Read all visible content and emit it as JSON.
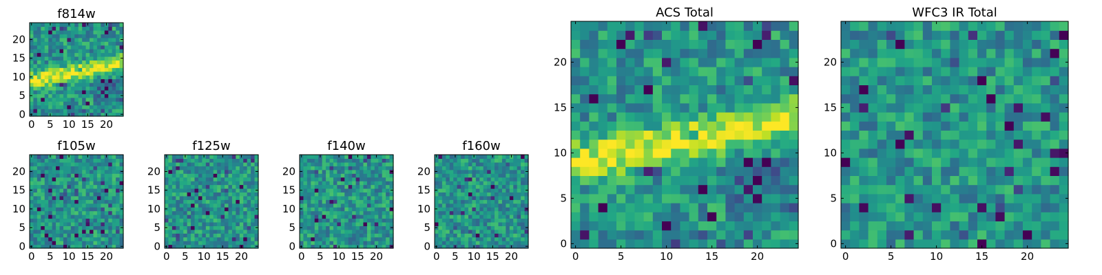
{
  "chart_data": [
    {
      "type": "heatmap",
      "title": "f814w",
      "xlim": [
        -0.5,
        24.5
      ],
      "ylim": [
        -0.5,
        24.5
      ],
      "x_ticks": [
        0,
        5,
        10,
        15,
        20
      ],
      "y_ticks": [
        0,
        5,
        10,
        15,
        20
      ],
      "grid": false,
      "colormap": "viridis",
      "colorbar": false,
      "feature": "bright diagonal band rising from y≈9 at left to y≈14 at right",
      "seed": 11
    },
    {
      "type": "heatmap",
      "title": "f105w",
      "xlim": [
        -0.5,
        24.5
      ],
      "ylim": [
        -0.5,
        24.5
      ],
      "x_ticks": [
        0,
        5,
        10,
        15,
        20
      ],
      "y_ticks": [
        0,
        5,
        10,
        15,
        20
      ],
      "grid": false,
      "colormap": "viridis",
      "colorbar": false,
      "feature": "noise",
      "seed": 23
    },
    {
      "type": "heatmap",
      "title": "f125w",
      "xlim": [
        -0.5,
        24.5
      ],
      "ylim": [
        -0.5,
        24.5
      ],
      "x_ticks": [
        0,
        5,
        10,
        15,
        20
      ],
      "y_ticks": [
        0,
        5,
        10,
        15,
        20
      ],
      "grid": false,
      "colormap": "viridis",
      "colorbar": false,
      "feature": "noise",
      "seed": 37
    },
    {
      "type": "heatmap",
      "title": "f140w",
      "xlim": [
        -0.5,
        24.5
      ],
      "ylim": [
        -0.5,
        24.5
      ],
      "x_ticks": [
        0,
        5,
        10,
        15,
        20
      ],
      "y_ticks": [
        0,
        5,
        10,
        15,
        20
      ],
      "grid": false,
      "colormap": "viridis",
      "colorbar": false,
      "feature": "noise",
      "seed": 41
    },
    {
      "type": "heatmap",
      "title": "f160w",
      "xlim": [
        -0.5,
        24.5
      ],
      "ylim": [
        -0.5,
        24.5
      ],
      "x_ticks": [
        0,
        5,
        10,
        15,
        20
      ],
      "y_ticks": [
        0,
        5,
        10,
        15,
        20
      ],
      "grid": false,
      "colormap": "viridis",
      "colorbar": false,
      "feature": "noise",
      "seed": 53
    },
    {
      "type": "heatmap",
      "title": "ACS Total",
      "xlim": [
        -0.5,
        24.5
      ],
      "ylim": [
        -0.5,
        24.5
      ],
      "x_ticks": [
        0,
        5,
        10,
        15,
        20
      ],
      "y_ticks": [
        0,
        5,
        10,
        15,
        20
      ],
      "grid": false,
      "colormap": "viridis",
      "colorbar": false,
      "feature": "bright diagonal band rising from y≈9 at left to y≈14 at right",
      "seed": 11
    },
    {
      "type": "heatmap",
      "title": "WFC3 IR Total",
      "xlim": [
        -0.5,
        24.5
      ],
      "ylim": [
        -0.5,
        24.5
      ],
      "x_ticks": [
        0,
        5,
        10,
        15,
        20
      ],
      "y_ticks": [
        0,
        5,
        10,
        15,
        20
      ],
      "grid": false,
      "colormap": "viridis",
      "colorbar": false,
      "feature": "noise",
      "seed": 71
    }
  ]
}
